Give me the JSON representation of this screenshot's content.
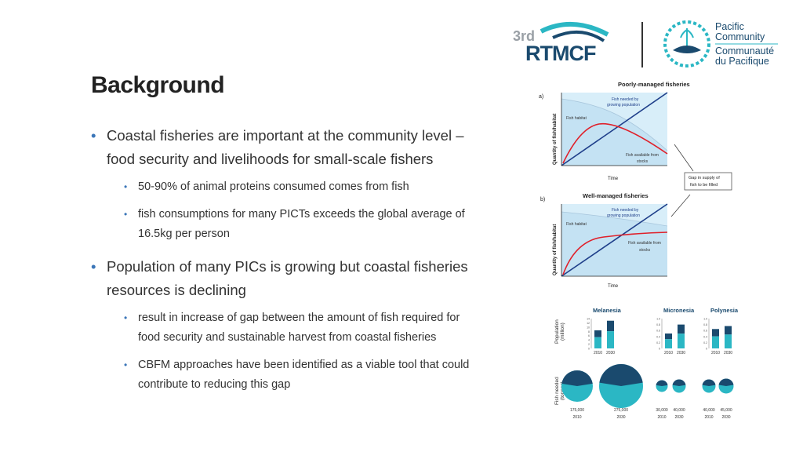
{
  "slide": {
    "title": "Background",
    "bullets": [
      {
        "text": "Coastal fisheries are important at the community level – food security and livelihoods for small-scale fishers",
        "sub": [
          "50-90% of animal proteins consumed comes from fish",
          "fish consumptions for many PICTs exceeds the global average of 16.5kg per person"
        ]
      },
      {
        "text": "Population of many PICs is growing but coastal fisheries resources is declining",
        "sub": [
          "result in increase of gap between the amount of fish required for food security and sustainable harvest from coastal fisheries",
          "CBFM approaches have been identified as a viable tool that could contribute to reducing this gap"
        ]
      }
    ]
  },
  "logos": {
    "rtmcf_superscript": "3rd",
    "rtmcf": "RTMCF",
    "pc_line1": "Pacific",
    "pc_line2": "Community",
    "pc_line3": "Communauté",
    "pc_line4": "du Pacifique"
  },
  "colors": {
    "accent": "#3b76b8",
    "teal": "#2bb7c4",
    "navy": "#1a4a6e",
    "habitat": "#d8eef9",
    "red": "#e0202a",
    "line": "#1f3f8a"
  },
  "chart_data": [
    {
      "type": "line",
      "panel": "a)",
      "title": "Poorly-managed fisheries",
      "xlabel": "Time",
      "ylabel": "Quantity of fish/habitat",
      "series": [
        {
          "name": "Fish needed by growing population",
          "trend": "linear increase"
        },
        {
          "name": "Fish available from stocks",
          "trend": "rise then decline"
        },
        {
          "name": "Fish habitat",
          "trend": "declining"
        }
      ],
      "annotation": "Gap in supply of fish to be filled"
    },
    {
      "type": "line",
      "panel": "b)",
      "title": "Well-managed fisheries",
      "xlabel": "Time",
      "ylabel": "Quantity of fish/habitat",
      "series": [
        {
          "name": "Fish needed by growing population",
          "trend": "linear increase"
        },
        {
          "name": "Fish available from stocks",
          "trend": "rise then plateau"
        },
        {
          "name": "Fish habitat",
          "trend": "slightly declining"
        }
      ]
    },
    {
      "type": "bar",
      "title": "Population (million)",
      "regions": [
        {
          "name": "Melanesia",
          "years": [
            "2010",
            "2030"
          ],
          "values": [
            8.5,
            13
          ],
          "ticks": [
            "14",
            "12",
            "10",
            "8",
            "6",
            "4",
            "2",
            "0"
          ]
        },
        {
          "name": "Micronesia",
          "years": [
            "2010",
            "2030"
          ],
          "values": [
            0.5,
            0.8
          ],
          "ticks": [
            "1.0",
            "0.8",
            "0.6",
            "0.4",
            "0.2",
            "0"
          ]
        },
        {
          "name": "Polynesia",
          "years": [
            "2010",
            "2030"
          ],
          "values": [
            0.65,
            0.75
          ],
          "ticks": [
            "1.0",
            "0.8",
            "0.6",
            "0.4",
            "0.2",
            "0"
          ]
        }
      ]
    },
    {
      "type": "pie",
      "title": "Fish needed (tonnes)",
      "regions": [
        {
          "name": "Melanesia",
          "pies": [
            {
              "year": "2010",
              "label": "175,000"
            },
            {
              "year": "2030",
              "label": "275,000"
            }
          ]
        },
        {
          "name": "Micronesia",
          "pies": [
            {
              "year": "2010",
              "label": "30,000"
            },
            {
              "year": "2030",
              "label": "40,000"
            }
          ]
        },
        {
          "name": "Polynesia",
          "pies": [
            {
              "year": "2010",
              "label": "40,000"
            },
            {
              "year": "2030",
              "label": "45,000"
            }
          ]
        }
      ]
    }
  ]
}
